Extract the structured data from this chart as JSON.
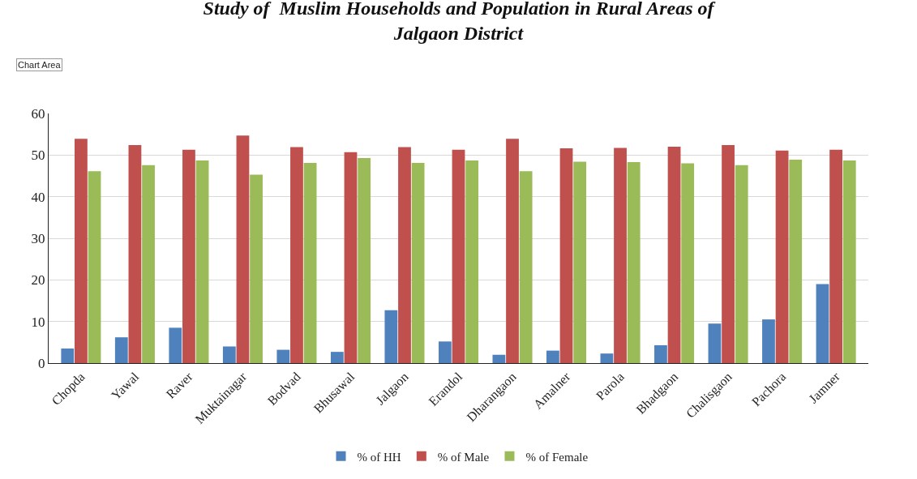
{
  "chart_data": {
    "type": "bar",
    "title": "Study of  Muslim Households and Population in Rural Areas of\nJalgaon District",
    "categories": [
      "Chopda",
      "Yawal",
      "Raver",
      "Muktainagar",
      "Bodvad",
      "Bhusawal",
      "Jalgaon",
      "Erandol",
      "Dharangaon",
      "Amalner",
      "Parola",
      "Bhadgaon",
      "Chalisgaon",
      "Pachora",
      "Jamner"
    ],
    "series": [
      {
        "name": "% of HH",
        "color": "#4f81bd",
        "values": [
          3.5,
          6.2,
          8.5,
          4.0,
          3.2,
          2.7,
          12.7,
          5.2,
          2.0,
          3.0,
          2.3,
          4.3,
          9.5,
          10.5,
          19.0
        ]
      },
      {
        "name": "% of Male",
        "color": "#c0504d",
        "values": [
          53.9,
          52.4,
          51.3,
          54.7,
          51.9,
          50.7,
          51.9,
          51.3,
          53.9,
          51.6,
          51.7,
          52.0,
          52.4,
          51.1,
          51.3
        ]
      },
      {
        "name": "% of Female",
        "color": "#9bbb59",
        "values": [
          46.1,
          47.6,
          48.7,
          45.3,
          48.1,
          49.3,
          48.1,
          48.7,
          46.1,
          48.4,
          48.3,
          48.0,
          47.6,
          48.9,
          48.7
        ]
      }
    ],
    "ylim": [
      0,
      60
    ],
    "yticks": [
      0,
      10,
      20,
      30,
      40,
      50,
      60
    ],
    "grid": "y",
    "legend": "bottom",
    "annotations": [
      "Chart Area"
    ]
  }
}
